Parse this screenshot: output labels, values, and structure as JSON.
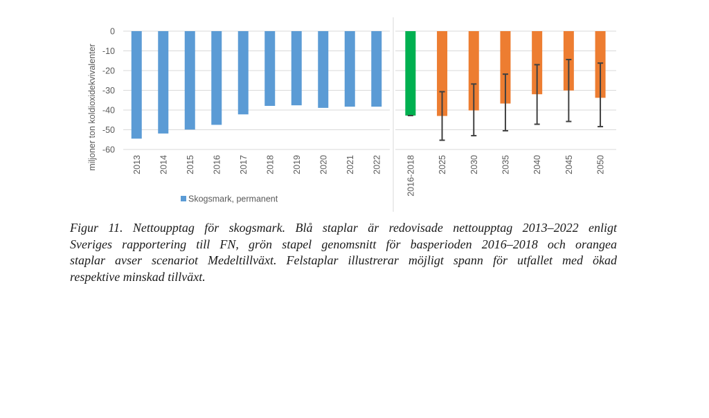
{
  "chart_data": {
    "type": "bar",
    "title": "",
    "ylabel": "miljoner ton koldioxidekvivalenter",
    "xlabel": "",
    "ylim": [
      -60,
      0
    ],
    "yticks": [
      0,
      -10,
      -20,
      -30,
      -40,
      -50,
      -60
    ],
    "grid": true,
    "legend": {
      "position": "bottom-left",
      "entries": [
        "Skogsmark, permanent"
      ]
    },
    "panels": [
      {
        "name": "historical",
        "categories": [
          "2013",
          "2014",
          "2015",
          "2016",
          "2017",
          "2018",
          "2019",
          "2020",
          "2021",
          "2022"
        ],
        "series": [
          {
            "name": "Skogsmark, permanent",
            "color": "#5B9BD5",
            "values": [
              -54.5,
              -51.9,
              -49.9,
              -47.5,
              -42.2,
              -37.9,
              -37.6,
              -38.9,
              -38.3,
              -38.3
            ]
          }
        ]
      },
      {
        "name": "scenario",
        "categories": [
          "2016-2018",
          "2025",
          "2030",
          "2035",
          "2040",
          "2045",
          "2050"
        ],
        "series": [
          {
            "name": "Basperiod 2016–2018",
            "color": "#00B050",
            "values": [
              -42.8,
              null,
              null,
              null,
              null,
              null,
              null
            ]
          },
          {
            "name": "Medeltillväxt",
            "color": "#ED7D31",
            "values": [
              null,
              -43.0,
              -40.2,
              -36.7,
              -32.0,
              -30.1,
              -33.8
            ],
            "error_high": [
              null,
              -30.7,
              -26.8,
              -21.8,
              -17.0,
              -14.4,
              -16.2
            ],
            "error_low": [
              null,
              -55.3,
              -53.0,
              -50.5,
              -47.2,
              -45.8,
              -48.4
            ]
          }
        ]
      }
    ]
  },
  "colors": {
    "blue": "#5B9BD5",
    "green": "#00B050",
    "orange": "#ED7D31",
    "errorbar": "#404040",
    "grid": "#D9D9D9",
    "axis_text": "#595959"
  },
  "caption": {
    "lines": [
      "Figur 11. Nettoupptag för skogsmark. Blå staplar är redovisade nettoupptag 2013–2022 enligt",
      "Sveriges rapportering till FN, grön stapel genomsnitt för basperioden 2016–2018 och orangea",
      "staplar avser scenariot Medeltillväxt. Felstaplar illustrerar möjligt spann för utfallet med ökad",
      "respektive minskad tillväxt."
    ]
  }
}
